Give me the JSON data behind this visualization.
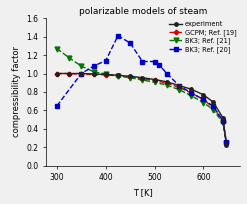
{
  "title": "polarizable models of steam",
  "xlabel": "T [K]",
  "ylabel": "compressibility factor",
  "xlim": [
    278,
    675
  ],
  "ylim": [
    0.0,
    1.6
  ],
  "yticks": [
    0.0,
    0.2,
    0.4,
    0.6,
    0.8,
    1.0,
    1.2,
    1.4,
    1.6
  ],
  "xticks": [
    300,
    400,
    500,
    600
  ],
  "experiment": {
    "T": [
      300,
      325,
      350,
      375,
      400,
      425,
      450,
      475,
      500,
      525,
      550,
      575,
      600,
      620,
      640,
      647
    ],
    "Z": [
      1.0,
      1.0,
      1.0,
      0.995,
      0.99,
      0.98,
      0.97,
      0.955,
      0.935,
      0.91,
      0.87,
      0.83,
      0.77,
      0.69,
      0.52,
      0.23
    ],
    "color": "#222222",
    "marker": "o",
    "markersize": 2.5,
    "linewidth": 1.0,
    "linestyle": "-",
    "label": "experiment"
  },
  "gcpm": {
    "T": [
      300,
      325,
      350,
      375,
      400,
      425,
      450,
      475,
      500,
      525,
      550,
      575,
      600,
      620,
      640,
      647
    ],
    "Z": [
      1.0,
      1.0,
      0.99,
      0.99,
      0.985,
      0.975,
      0.96,
      0.945,
      0.925,
      0.895,
      0.85,
      0.79,
      0.715,
      0.635,
      0.48,
      0.245
    ],
    "color": "#dd0000",
    "marker": "P",
    "markersize": 3.0,
    "linewidth": 1.0,
    "linestyle": "--",
    "label": "GCPM; Ref. [19]"
  },
  "bks21": {
    "T": [
      300,
      325,
      350,
      375,
      400,
      425,
      450,
      475,
      500,
      525,
      550,
      575,
      600,
      620,
      640,
      647
    ],
    "Z": [
      1.27,
      1.17,
      1.08,
      1.02,
      0.995,
      0.975,
      0.955,
      0.93,
      0.905,
      0.875,
      0.825,
      0.76,
      0.685,
      0.61,
      0.465,
      0.25
    ],
    "color": "#007700",
    "marker": "v",
    "markersize": 3.5,
    "linewidth": 1.0,
    "linestyle": "--",
    "label": "BK3; Ref. [21]"
  },
  "bks20": {
    "T": [
      300,
      350,
      375,
      400,
      425,
      450,
      475,
      500,
      510,
      525,
      550,
      575,
      600,
      620,
      640,
      647
    ],
    "Z": [
      0.65,
      1.0,
      1.08,
      1.14,
      1.41,
      1.33,
      1.13,
      1.13,
      1.09,
      1.0,
      0.87,
      0.79,
      0.72,
      0.645,
      0.49,
      0.255
    ],
    "color": "#0000cc",
    "marker": "s",
    "markersize": 3.0,
    "linewidth": 1.0,
    "linestyle": "--",
    "label": "BK3; Ref. [20]"
  },
  "title_fontsize": 6.5,
  "label_fontsize": 6,
  "tick_fontsize": 5.5,
  "legend_fontsize": 4.8,
  "bg_color": "#f0f0f0"
}
